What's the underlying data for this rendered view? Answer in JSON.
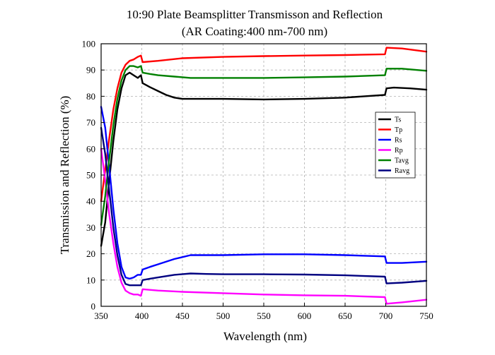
{
  "chart_data": {
    "type": "line",
    "title": "10:90 Plate Beamsplitter Transmisson and Reflection",
    "subtitle": "(AR Coating:400 nm-700 nm)",
    "xlabel": "Wavelength (nm)",
    "ylabel": "Transmission and Reflection (%)",
    "xlim": [
      350,
      750
    ],
    "ylim": [
      0,
      100
    ],
    "xticks": [
      350,
      400,
      450,
      500,
      550,
      600,
      650,
      700,
      750
    ],
    "yticks": [
      0,
      10,
      20,
      30,
      40,
      50,
      60,
      70,
      80,
      90,
      100
    ],
    "grid": true,
    "legend_position": "right",
    "series": [
      {
        "name": "Ts",
        "color": "#000000",
        "x": [
          350,
          355,
          360,
          365,
          370,
          375,
          380,
          385,
          390,
          395,
          399,
          401,
          410,
          420,
          430,
          440,
          450,
          460,
          480,
          500,
          550,
          600,
          650,
          699,
          701,
          710,
          730,
          750
        ],
        "y": [
          23,
          32,
          48,
          63,
          75,
          83,
          88,
          89,
          88,
          87,
          88,
          85,
          83.5,
          82,
          80.5,
          79.5,
          79,
          79,
          79,
          79,
          78.8,
          79,
          79.5,
          80.5,
          83,
          83.3,
          83,
          82.5
        ]
      },
      {
        "name": "Tp",
        "color": "#ff0000",
        "x": [
          350,
          355,
          360,
          365,
          370,
          375,
          380,
          385,
          390,
          395,
          399,
          401,
          420,
          450,
          500,
          550,
          600,
          650,
          699,
          701,
          720,
          750
        ],
        "y": [
          40,
          52,
          64,
          75,
          83,
          89,
          92,
          93.5,
          94,
          95,
          95.5,
          93,
          93.5,
          94.5,
          95,
          95.3,
          95.5,
          95.7,
          96,
          98.5,
          98.2,
          97
        ]
      },
      {
        "name": "Rs",
        "color": "#0000ff",
        "x": [
          350,
          355,
          360,
          365,
          370,
          375,
          380,
          385,
          390,
          395,
          399,
          401,
          410,
          420,
          440,
          460,
          480,
          500,
          550,
          600,
          650,
          699,
          701,
          720,
          750
        ],
        "y": [
          76,
          68,
          53,
          37,
          24,
          15,
          11,
          10.5,
          11,
          12,
          12,
          14,
          15,
          16,
          18,
          19.5,
          19.5,
          19.5,
          19.8,
          19.8,
          19.5,
          19,
          16.5,
          16.5,
          17
        ]
      },
      {
        "name": "Rp",
        "color": "#ff00ff",
        "x": [
          350,
          355,
          360,
          365,
          370,
          375,
          380,
          385,
          390,
          395,
          399,
          401,
          420,
          450,
          500,
          550,
          600,
          650,
          699,
          701,
          720,
          750
        ],
        "y": [
          60,
          48,
          35,
          24,
          15,
          9,
          6,
          5,
          4.5,
          4.5,
          4,
          6.5,
          6,
          5.5,
          5,
          4.5,
          4.2,
          4,
          3.5,
          1,
          1.5,
          2.5
        ]
      },
      {
        "name": "Tavg",
        "color": "#008000",
        "x": [
          350,
          355,
          360,
          365,
          370,
          375,
          380,
          385,
          390,
          395,
          399,
          401,
          410,
          420,
          440,
          460,
          480,
          500,
          550,
          600,
          650,
          699,
          701,
          720,
          750
        ],
        "y": [
          31,
          42,
          56,
          69,
          79,
          86,
          90,
          91.5,
          91.5,
          91,
          91.5,
          89,
          88.5,
          88,
          87.5,
          87,
          87,
          87,
          87,
          87.2,
          87.5,
          88,
          90.5,
          90.5,
          89.7
        ]
      },
      {
        "name": "Ravg",
        "color": "#000080",
        "x": [
          350,
          355,
          360,
          365,
          370,
          375,
          380,
          385,
          390,
          395,
          399,
          401,
          410,
          420,
          440,
          460,
          480,
          500,
          550,
          600,
          650,
          699,
          701,
          720,
          750
        ],
        "y": [
          68,
          58,
          44,
          30,
          19.5,
          12,
          8.5,
          8,
          8,
          8,
          8,
          10,
          10.5,
          11,
          12,
          12.5,
          12.3,
          12.2,
          12.2,
          12.1,
          11.8,
          11.3,
          8.7,
          9,
          9.7
        ]
      }
    ]
  }
}
